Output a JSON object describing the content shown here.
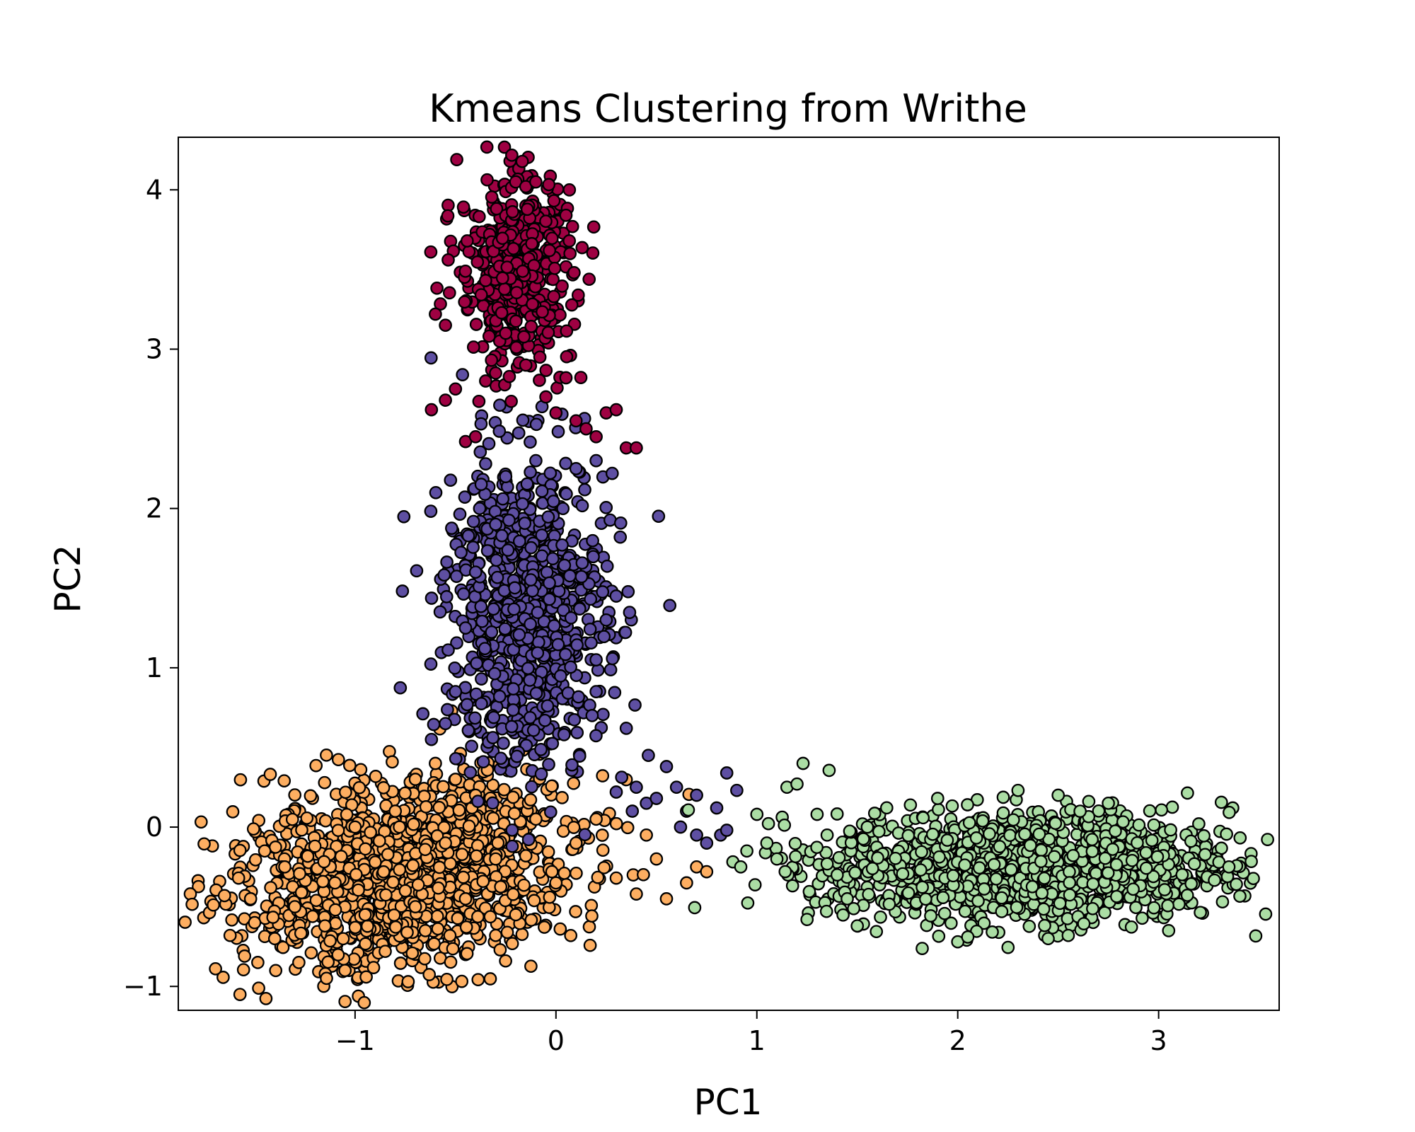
{
  "chart_data": {
    "type": "scatter",
    "title": "Kmeans Clustering from Writhe",
    "xlabel": "PC1",
    "ylabel": "PC2",
    "xlim": [
      -1.88,
      3.6
    ],
    "ylim": [
      -1.15,
      4.33
    ],
    "xticks": [
      -1,
      0,
      1,
      2,
      3
    ],
    "yticks": [
      -1,
      0,
      1,
      2,
      3,
      4
    ],
    "xtick_labels": [
      "−1",
      "0",
      "1",
      "2",
      "3"
    ],
    "ytick_labels": [
      "−1",
      "0",
      "1",
      "2",
      "3",
      "4"
    ],
    "grid": false,
    "legend": "none",
    "point_edge_color": "#000000",
    "clusters": [
      {
        "color": "#fdae61",
        "points": [
          [
            -1.65,
            -0.43
          ],
          [
            -1.58,
            -0.32
          ],
          [
            -1.55,
            -0.81
          ],
          [
            -1.52,
            -0.45
          ],
          [
            -1.5,
            -0.6
          ],
          [
            -1.45,
            -0.15
          ],
          [
            -1.42,
            -0.38
          ],
          [
            -1.4,
            -0.7
          ],
          [
            -1.35,
            -0.25
          ],
          [
            -1.3,
            -0.5
          ],
          [
            -1.28,
            -0.85
          ],
          [
            -1.2,
            -0.12
          ],
          [
            -1.15,
            -0.62
          ],
          [
            -1.1,
            -0.35
          ],
          [
            -1.05,
            -0.9
          ],
          [
            -1.0,
            0.0
          ],
          [
            -0.95,
            -0.55
          ],
          [
            -0.9,
            -0.22
          ],
          [
            -0.85,
            -0.78
          ],
          [
            -0.8,
            0.1
          ],
          [
            -0.75,
            -0.4
          ],
          [
            -0.7,
            0.3
          ],
          [
            -0.65,
            -0.65
          ],
          [
            -0.6,
            0.4
          ],
          [
            -0.55,
            -0.1
          ],
          [
            -0.5,
            0.3
          ],
          [
            -0.45,
            -0.45
          ],
          [
            -0.4,
            0.2
          ],
          [
            -0.3,
            -0.2
          ],
          [
            -0.2,
            -0.55
          ],
          [
            -0.1,
            0.05
          ],
          [
            0.0,
            -0.35
          ],
          [
            0.1,
            -0.1
          ],
          [
            0.2,
            0.05
          ],
          [
            0.3,
            -0.32
          ],
          [
            0.4,
            -0.42
          ],
          [
            0.45,
            -0.05
          ],
          [
            0.5,
            -0.2
          ],
          [
            0.55,
            -0.45
          ],
          [
            0.65,
            -0.35
          ],
          [
            0.7,
            -0.25
          ],
          [
            0.75,
            -0.28
          ],
          [
            -0.02,
            -0.28
          ],
          [
            -0.15,
            -0.18
          ],
          [
            -0.7,
            -0.5
          ],
          [
            -0.3,
            -0.68
          ]
        ],
        "dense": {
          "cx": -0.75,
          "cy": -0.3,
          "sx": 0.42,
          "sy": 0.28,
          "rot": 0.28,
          "n": 1400
        }
      },
      {
        "color": "#5e4fa2",
        "points": [
          [
            -0.62,
            0.55
          ],
          [
            -0.55,
            0.65
          ],
          [
            -0.5,
            0.85
          ],
          [
            -0.45,
            1.25
          ],
          [
            -0.4,
            1.6
          ],
          [
            -0.38,
            2.0
          ],
          [
            -0.35,
            2.28
          ],
          [
            -0.3,
            1.9
          ],
          [
            -0.25,
            2.2
          ],
          [
            -0.1,
            2.3
          ],
          [
            0.1,
            2.25
          ],
          [
            0.2,
            2.3
          ],
          [
            0.28,
            2.22
          ],
          [
            0.32,
            1.82
          ],
          [
            0.3,
            1.45
          ],
          [
            0.25,
            1.3
          ],
          [
            0.2,
            1.05
          ],
          [
            0.2,
            0.85
          ],
          [
            0.18,
            0.7
          ],
          [
            0.35,
            0.62
          ],
          [
            0.46,
            0.45
          ],
          [
            0.55,
            0.38
          ],
          [
            0.6,
            0.25
          ],
          [
            0.65,
            0.1
          ],
          [
            0.7,
            0.2
          ],
          [
            0.8,
            0.12
          ],
          [
            0.85,
            0.34
          ],
          [
            0.9,
            0.23
          ],
          [
            0.3,
            0.22
          ],
          [
            0.38,
            0.1
          ],
          [
            0.45,
            0.15
          ],
          [
            0.62,
            0.0
          ],
          [
            0.7,
            -0.05
          ],
          [
            0.75,
            -0.1
          ],
          [
            0.82,
            -0.05
          ],
          [
            0.85,
            -0.02
          ],
          [
            0.4,
            0.25
          ],
          [
            0.5,
            0.18
          ]
        ],
        "dense": {
          "cx": -0.15,
          "cy": 1.35,
          "sx": 0.2,
          "sy": 0.5,
          "rot": 0.0,
          "n": 800
        }
      },
      {
        "color": "#9e0142",
        "points": [
          [
            -0.62,
            2.62
          ],
          [
            -0.55,
            2.68
          ],
          [
            -0.5,
            2.75
          ],
          [
            -0.45,
            2.42
          ],
          [
            -0.4,
            2.45
          ],
          [
            -0.35,
            2.8
          ],
          [
            -0.3,
            2.85
          ],
          [
            -0.28,
            3.05
          ],
          [
            -0.25,
            3.1
          ],
          [
            -0.2,
            4.05
          ],
          [
            -0.15,
            4.02
          ],
          [
            -0.1,
            4.05
          ],
          [
            0.05,
            3.84
          ],
          [
            0.07,
            3.6
          ],
          [
            0.09,
            3.48
          ],
          [
            0.05,
            2.82
          ],
          [
            0.1,
            2.55
          ],
          [
            0.15,
            2.5
          ],
          [
            0.2,
            2.45
          ],
          [
            0.25,
            2.6
          ],
          [
            0.3,
            2.62
          ],
          [
            0.35,
            2.38
          ],
          [
            0.4,
            2.38
          ],
          [
            -0.6,
            3.22
          ],
          [
            -0.55,
            3.15
          ],
          [
            -0.15,
            2.9
          ],
          [
            -0.05,
            2.7
          ],
          [
            0.0,
            2.6
          ],
          [
            -0.08,
            2.95
          ]
        ],
        "dense": {
          "cx": -0.2,
          "cy": 3.5,
          "sx": 0.14,
          "sy": 0.3,
          "rot": 0.0,
          "n": 450
        }
      },
      {
        "color": "#abdda4",
        "points": [
          [
            0.92,
            -0.25
          ],
          [
            0.95,
            -0.15
          ],
          [
            1.0,
            0.08
          ],
          [
            1.05,
            -0.1
          ],
          [
            1.1,
            -0.2
          ],
          [
            1.15,
            0.25
          ],
          [
            1.2,
            0.27
          ],
          [
            1.23,
            0.4
          ],
          [
            1.25,
            -0.58
          ],
          [
            1.3,
            0.08
          ],
          [
            1.35,
            -0.05
          ],
          [
            1.4,
            -0.3
          ],
          [
            1.5,
            -0.62
          ],
          [
            1.55,
            0.0
          ],
          [
            1.45,
            -0.45
          ],
          [
            2.0,
            -0.72
          ],
          [
            2.05,
            -0.69
          ],
          [
            2.3,
            0.23
          ],
          [
            2.45,
            -0.7
          ],
          [
            2.55,
            -0.68
          ],
          [
            3.2,
            0.02
          ],
          [
            3.3,
            -0.22
          ],
          [
            3.35,
            -0.25
          ],
          [
            3.05,
            -0.65
          ],
          [
            2.5,
            0.2
          ],
          [
            1.9,
            0.18
          ],
          [
            2.75,
            0.15
          ]
        ],
        "dense": {
          "cx": 2.35,
          "cy": -0.25,
          "sx": 0.5,
          "sy": 0.17,
          "rot": 0.0,
          "n": 1300
        }
      }
    ]
  }
}
